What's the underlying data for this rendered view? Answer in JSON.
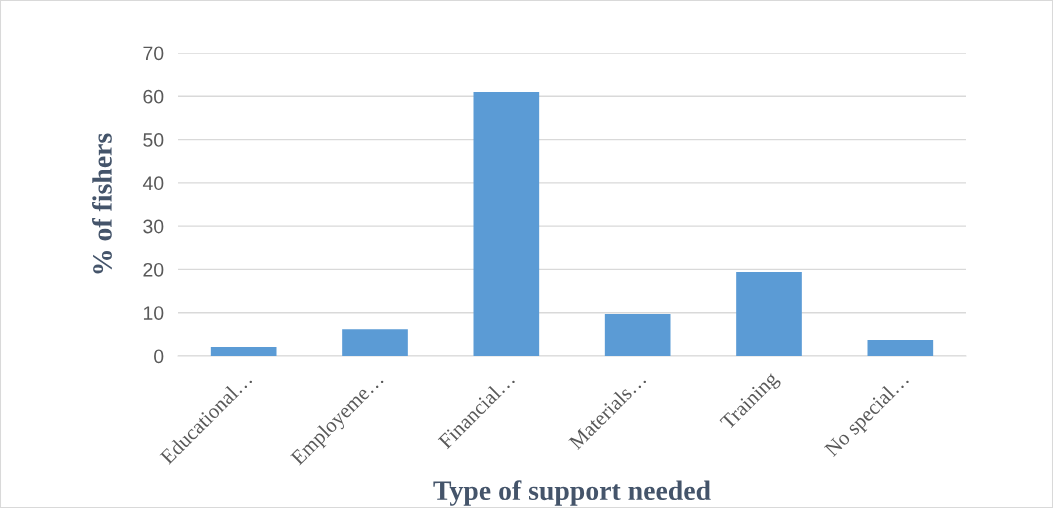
{
  "chart_data": {
    "type": "bar",
    "xlabel": "Type of support needed",
    "ylabel": "% of fishers",
    "categories": [
      "Educational…",
      "Employeme…",
      "Financial…",
      "Materials…",
      "Training",
      "No special…"
    ],
    "values": [
      2.1,
      6.2,
      61,
      9.7,
      19.4,
      3.7
    ],
    "color": "#5b9bd5",
    "ylim": [
      0,
      70
    ],
    "yticks": [
      0,
      10,
      20,
      30,
      40,
      50,
      60,
      70
    ],
    "grid": "y"
  }
}
